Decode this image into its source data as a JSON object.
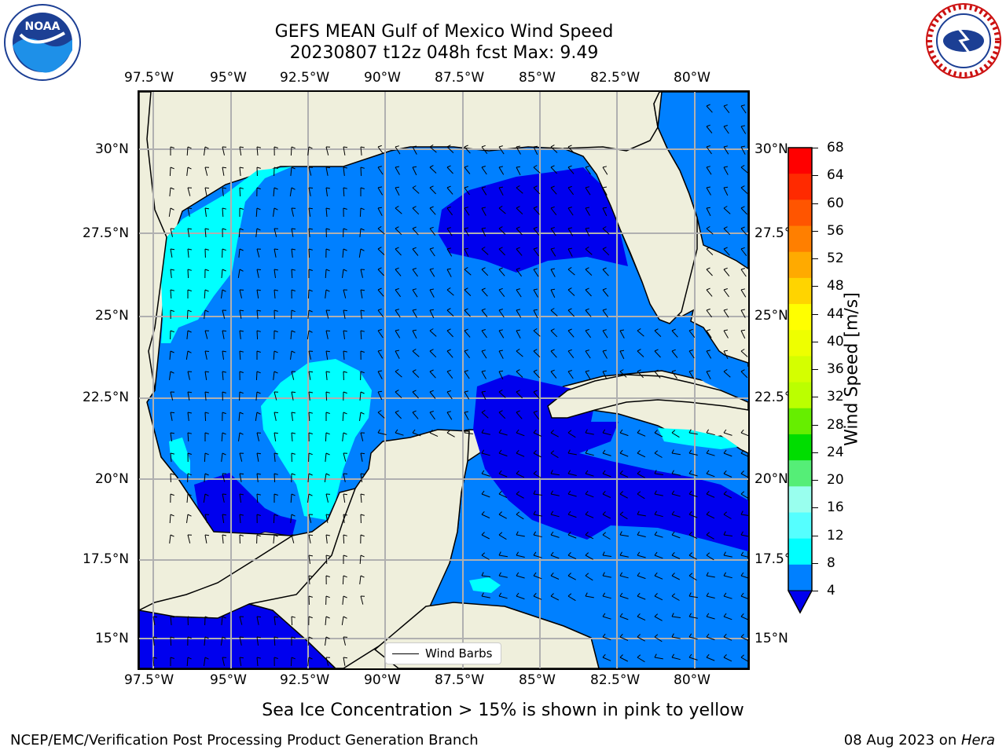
{
  "title": {
    "line1": "GEFS MEAN Gulf of Mexico Wind Speed",
    "line2": "20230807 t12z 048h fcst   Max: 9.49"
  },
  "logos": {
    "left": "NOAA",
    "right": "NATIONAL WEATHER SERVICE"
  },
  "map": {
    "lon_labels": [
      "97.5°W",
      "95°W",
      "92.5°W",
      "90°W",
      "87.5°W",
      "85°W",
      "82.5°W",
      "80°W"
    ],
    "lat_labels": [
      "30°N",
      "27.5°N",
      "25°N",
      "22.5°N",
      "20°N",
      "17.5°N",
      "15°N"
    ],
    "legend_label": "Wind Barbs"
  },
  "colorbar": {
    "label": "Wind Speed [m/s]",
    "ticks": [
      "68",
      "64",
      "60",
      "56",
      "52",
      "48",
      "44",
      "40",
      "36",
      "32",
      "28",
      "24",
      "20",
      "16",
      "12",
      "8",
      "4"
    ],
    "colors": [
      "#ff0000",
      "#ff2a00",
      "#ff5500",
      "#ff7f00",
      "#ffaa00",
      "#ffd400",
      "#ffff00",
      "#eeff00",
      "#d4ff00",
      "#bbff00",
      "#66ee00",
      "#00dd00",
      "#55ee77",
      "#99ffee",
      "#55ffff",
      "#00ffff",
      "#0080ff"
    ],
    "extend_color": "#0000ee"
  },
  "colors": {
    "land": "#efefdc",
    "wind_4_8": "#0080ff",
    "wind_below_4": "#0000ee",
    "wind_8_12": "#00ffff",
    "wind_12_16": "#55ffff"
  },
  "footer": {
    "note": "Sea Ice Concentration > 15% is shown in pink to yellow",
    "credit": "NCEP/EMC/Verification Post Processing Product Generation Branch",
    "date": "08 Aug 2023 on ",
    "machine": "Hera"
  }
}
